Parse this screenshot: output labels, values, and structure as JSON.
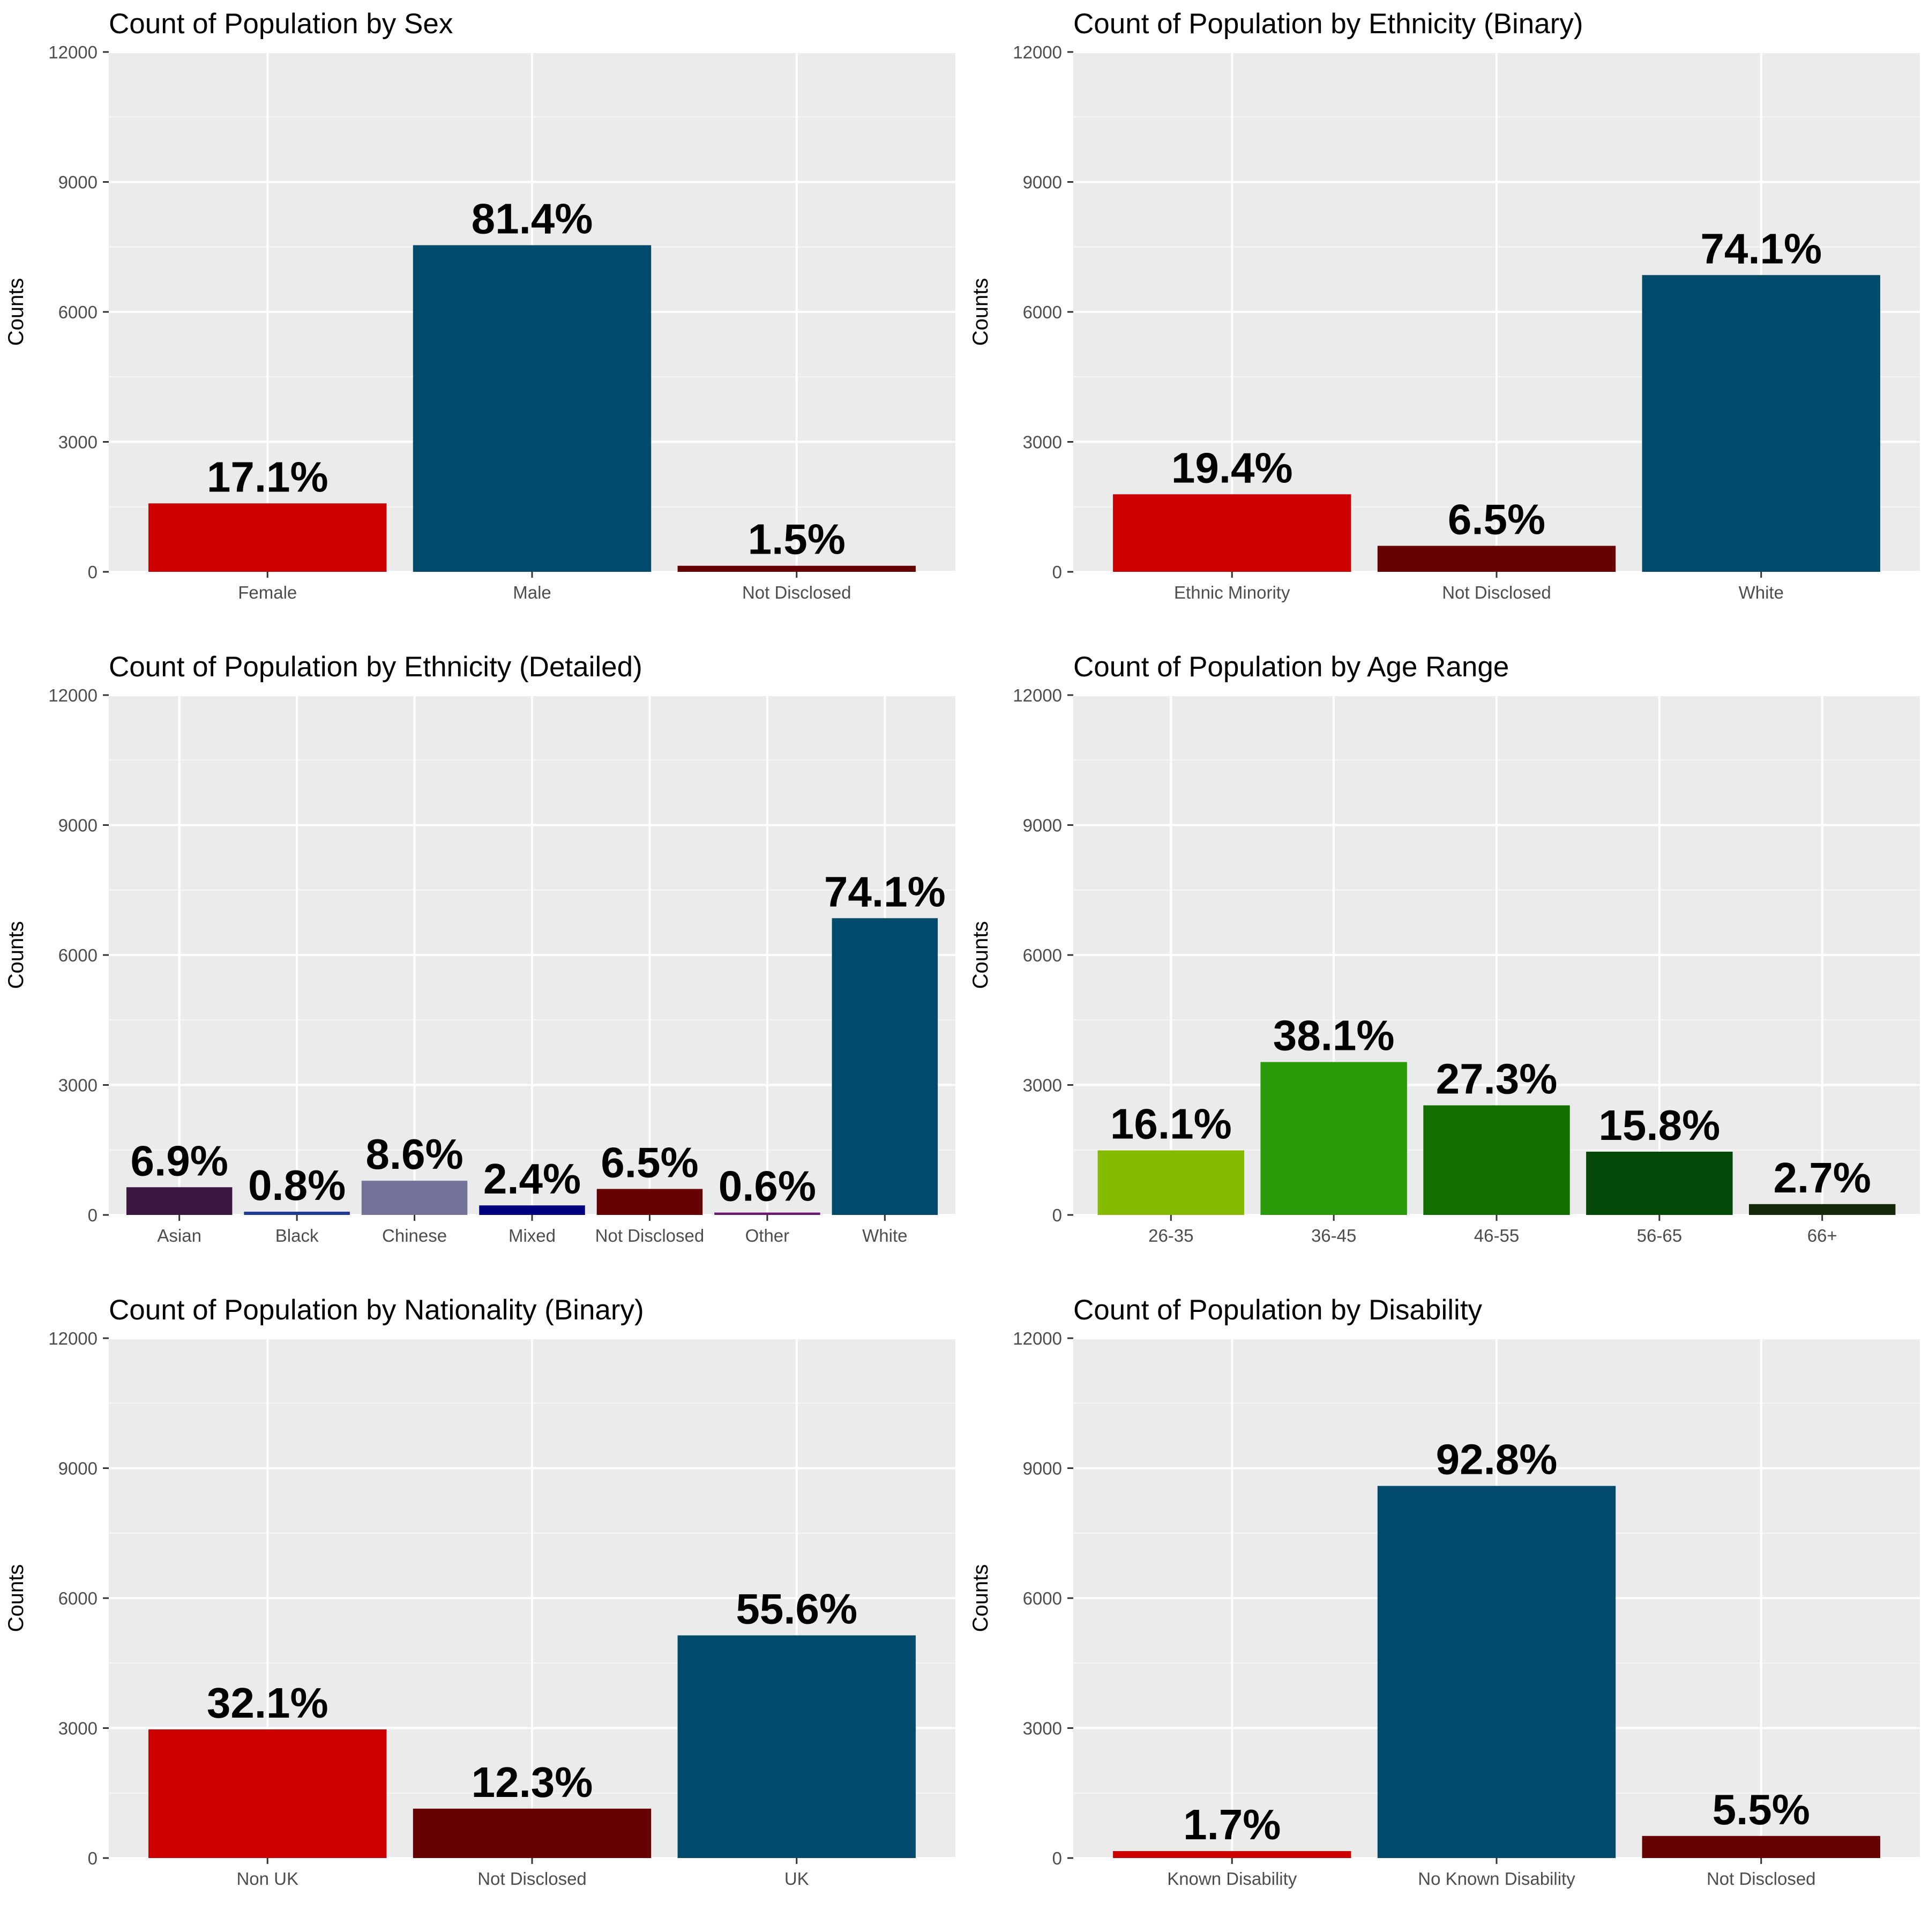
{
  "chart_data": [
    {
      "type": "bar",
      "title": "Count of Population by Sex",
      "xlabel": "",
      "ylabel": "Counts",
      "ylim": [
        0,
        12000
      ],
      "yticks": [
        0,
        3000,
        6000,
        9000,
        12000
      ],
      "grid": true,
      "categories": [
        "Female",
        "Male",
        "Not Disclosed"
      ],
      "values": [
        1580,
        7540,
        140
      ],
      "labels": [
        "17.1%",
        "81.4%",
        "1.5%"
      ],
      "colors": [
        "#cc0000",
        "#004a6b",
        "#660000"
      ]
    },
    {
      "type": "bar",
      "title": "Count of Population by Ethnicity (Binary)",
      "xlabel": "",
      "ylabel": "Counts",
      "ylim": [
        0,
        12000
      ],
      "yticks": [
        0,
        3000,
        6000,
        9000,
        12000
      ],
      "grid": true,
      "categories": [
        "Ethnic Minority",
        "Not Disclosed",
        "White"
      ],
      "values": [
        1790,
        600,
        6850
      ],
      "labels": [
        "19.4%",
        "6.5%",
        "74.1%"
      ],
      "colors": [
        "#cc0000",
        "#660000",
        "#004a6b"
      ]
    },
    {
      "type": "bar",
      "title": "Count of Population by Ethnicity (Detailed)",
      "xlabel": "",
      "ylabel": "Counts",
      "ylim": [
        0,
        12000
      ],
      "yticks": [
        0,
        3000,
        6000,
        9000,
        12000
      ],
      "grid": true,
      "categories": [
        "Asian",
        "Black",
        "Chinese",
        "Mixed",
        "Not Disclosed",
        "Other",
        "White"
      ],
      "values": [
        640,
        75,
        790,
        220,
        600,
        55,
        6850
      ],
      "labels": [
        "6.9%",
        "0.8%",
        "8.6%",
        "2.4%",
        "6.5%",
        "0.6%",
        "74.1%"
      ],
      "colors": [
        "#3b1740",
        "#1f3a93",
        "#737399",
        "#000080",
        "#660000",
        "#6a1a6a",
        "#004a6b"
      ]
    },
    {
      "type": "bar",
      "title": "Count of Population by Age Range",
      "xlabel": "",
      "ylabel": "Counts",
      "ylim": [
        0,
        12000
      ],
      "yticks": [
        0,
        3000,
        6000,
        9000,
        12000
      ],
      "grid": true,
      "categories": [
        "26-35",
        "36-45",
        "46-55",
        "56-65",
        "66+"
      ],
      "values": [
        1490,
        3530,
        2530,
        1460,
        250
      ],
      "labels": [
        "16.1%",
        "38.1%",
        "27.3%",
        "15.8%",
        "2.7%"
      ],
      "colors": [
        "#85bb00",
        "#2b9a08",
        "#137000",
        "#044808",
        "#142a0a"
      ]
    },
    {
      "type": "bar",
      "title": "Count of Population by Nationality (Binary)",
      "xlabel": "",
      "ylabel": "Counts",
      "ylim": [
        0,
        12000
      ],
      "yticks": [
        0,
        3000,
        6000,
        9000,
        12000
      ],
      "grid": true,
      "categories": [
        "Non UK",
        "Not Disclosed",
        "UK"
      ],
      "values": [
        2970,
        1140,
        5140
      ],
      "labels": [
        "32.1%",
        "12.3%",
        "55.6%"
      ],
      "colors": [
        "#cc0000",
        "#660000",
        "#004a6b"
      ]
    },
    {
      "type": "bar",
      "title": "Count of Population by Disability",
      "xlabel": "",
      "ylabel": "Counts",
      "ylim": [
        0,
        12000
      ],
      "yticks": [
        0,
        3000,
        6000,
        9000,
        12000
      ],
      "grid": true,
      "categories": [
        "Known Disability",
        "No Known Disability",
        "Not Disclosed"
      ],
      "values": [
        160,
        8590,
        510
      ],
      "labels": [
        "1.7%",
        "92.8%",
        "5.5%"
      ],
      "colors": [
        "#cc0000",
        "#004a6b",
        "#660000"
      ]
    }
  ]
}
